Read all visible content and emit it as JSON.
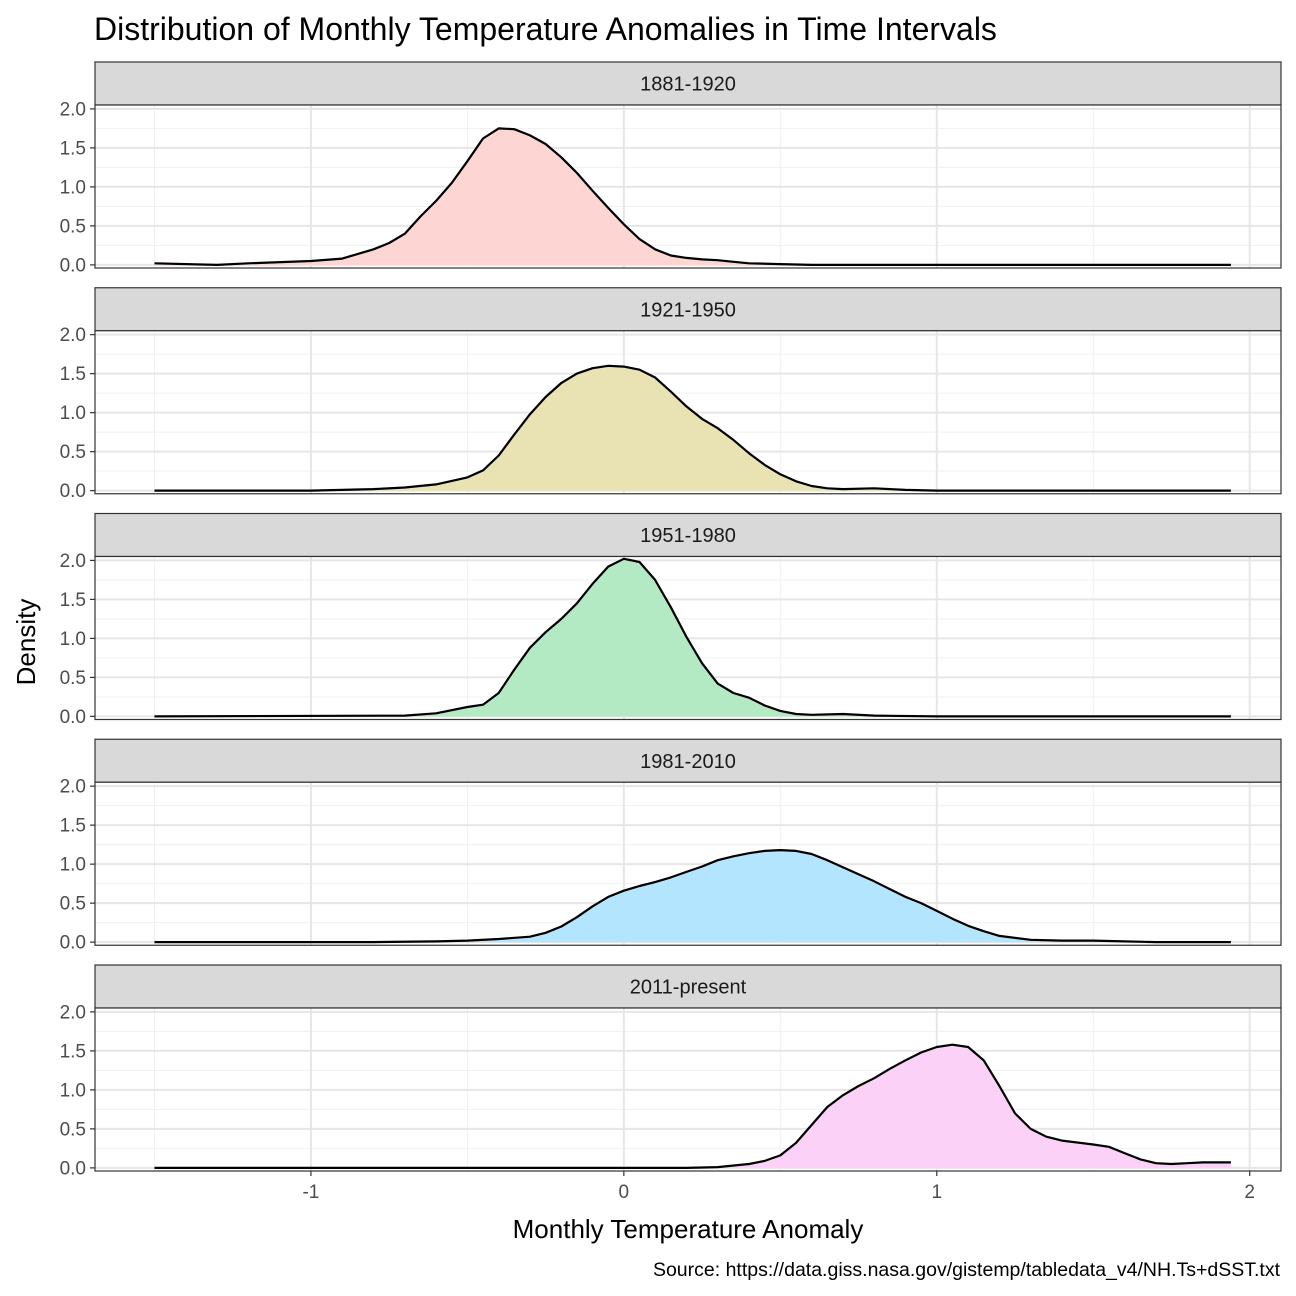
{
  "chart_data": {
    "type": "area",
    "title": "Distribution of Monthly Temperature Anomalies in Time Intervals",
    "xlabel": "Monthly Temperature Anomaly",
    "ylabel": "Density",
    "caption": "Source: https://data.giss.nasa.gov/gistemp/tabledata_v4/NH.Ts+dSST.txt",
    "xlim": [
      -1.69,
      2.1
    ],
    "ylim": [
      -0.04,
      2.05
    ],
    "x_ticks": [
      -1,
      0,
      1,
      2
    ],
    "x_tick_labels": [
      "-1",
      "0",
      "1",
      "2"
    ],
    "y_ticks": [
      0,
      0.5,
      1,
      1.5,
      2
    ],
    "y_tick_labels": [
      "0.0",
      "0.5",
      "1.0",
      "1.5",
      "2.0"
    ],
    "grid": true,
    "legend": "none",
    "facets": [
      {
        "name": "1881-1920",
        "color": "#F8766D",
        "x": [
          -1.5,
          -1.3,
          -1.2,
          -1.0,
          -0.9,
          -0.8,
          -0.75,
          -0.7,
          -0.65,
          -0.6,
          -0.55,
          -0.5,
          -0.45,
          -0.4,
          -0.35,
          -0.3,
          -0.25,
          -0.2,
          -0.15,
          -0.1,
          -0.05,
          0.0,
          0.05,
          0.1,
          0.15,
          0.2,
          0.25,
          0.3,
          0.35,
          0.4,
          0.5,
          0.6,
          0.8,
          1.0,
          1.5,
          1.94
        ],
        "y": [
          0.02,
          0.0,
          0.02,
          0.05,
          0.08,
          0.2,
          0.28,
          0.4,
          0.62,
          0.82,
          1.05,
          1.33,
          1.62,
          1.75,
          1.74,
          1.66,
          1.55,
          1.38,
          1.18,
          0.95,
          0.73,
          0.52,
          0.33,
          0.2,
          0.12,
          0.09,
          0.07,
          0.06,
          0.04,
          0.02,
          0.01,
          0.0,
          0.0,
          0.0,
          0.0,
          0.0
        ]
      },
      {
        "name": "1921-1950",
        "color": "#B79F00",
        "x": [
          -1.5,
          -1.0,
          -0.9,
          -0.8,
          -0.7,
          -0.6,
          -0.5,
          -0.45,
          -0.4,
          -0.35,
          -0.3,
          -0.25,
          -0.2,
          -0.15,
          -0.1,
          -0.05,
          0.0,
          0.05,
          0.1,
          0.15,
          0.2,
          0.25,
          0.3,
          0.35,
          0.4,
          0.45,
          0.5,
          0.55,
          0.6,
          0.65,
          0.7,
          0.8,
          0.9,
          1.0,
          1.5,
          1.94
        ],
        "y": [
          0.0,
          0.0,
          0.01,
          0.02,
          0.04,
          0.08,
          0.17,
          0.26,
          0.45,
          0.72,
          0.98,
          1.2,
          1.38,
          1.5,
          1.57,
          1.6,
          1.59,
          1.55,
          1.45,
          1.27,
          1.08,
          0.92,
          0.8,
          0.65,
          0.48,
          0.33,
          0.21,
          0.12,
          0.06,
          0.03,
          0.02,
          0.03,
          0.01,
          0.0,
          0.0,
          0.0
        ]
      },
      {
        "name": "1951-1980",
        "color": "#00BA38",
        "x": [
          -1.5,
          -0.7,
          -0.6,
          -0.5,
          -0.45,
          -0.4,
          -0.35,
          -0.3,
          -0.25,
          -0.2,
          -0.15,
          -0.1,
          -0.05,
          0.0,
          0.05,
          0.1,
          0.15,
          0.2,
          0.25,
          0.3,
          0.35,
          0.4,
          0.45,
          0.5,
          0.55,
          0.6,
          0.7,
          0.8,
          1.0,
          1.5,
          1.94
        ],
        "y": [
          0.0,
          0.01,
          0.04,
          0.12,
          0.15,
          0.3,
          0.6,
          0.88,
          1.08,
          1.25,
          1.45,
          1.7,
          1.92,
          2.02,
          1.98,
          1.75,
          1.4,
          1.02,
          0.68,
          0.42,
          0.3,
          0.24,
          0.14,
          0.07,
          0.03,
          0.02,
          0.03,
          0.01,
          0.0,
          0.0,
          0.0
        ]
      },
      {
        "name": "1981-2010",
        "color": "#00A9FF",
        "x": [
          -1.5,
          -0.8,
          -0.6,
          -0.5,
          -0.4,
          -0.3,
          -0.25,
          -0.2,
          -0.15,
          -0.1,
          -0.05,
          0.0,
          0.05,
          0.1,
          0.15,
          0.2,
          0.25,
          0.3,
          0.35,
          0.4,
          0.45,
          0.5,
          0.55,
          0.6,
          0.65,
          0.7,
          0.75,
          0.8,
          0.85,
          0.9,
          0.95,
          1.0,
          1.05,
          1.1,
          1.15,
          1.2,
          1.3,
          1.4,
          1.5,
          1.7,
          1.94
        ],
        "y": [
          0.0,
          0.0,
          0.01,
          0.02,
          0.04,
          0.07,
          0.12,
          0.2,
          0.32,
          0.46,
          0.58,
          0.66,
          0.72,
          0.77,
          0.83,
          0.9,
          0.97,
          1.05,
          1.1,
          1.14,
          1.17,
          1.18,
          1.17,
          1.13,
          1.05,
          0.96,
          0.87,
          0.78,
          0.68,
          0.58,
          0.5,
          0.4,
          0.3,
          0.21,
          0.14,
          0.08,
          0.03,
          0.02,
          0.02,
          0.0,
          0.0
        ]
      },
      {
        "name": "2011-present",
        "color": "#F564E3",
        "x": [
          -1.5,
          0.0,
          0.2,
          0.3,
          0.4,
          0.45,
          0.5,
          0.55,
          0.6,
          0.65,
          0.7,
          0.75,
          0.8,
          0.85,
          0.9,
          0.95,
          1.0,
          1.05,
          1.1,
          1.15,
          1.2,
          1.25,
          1.3,
          1.35,
          1.4,
          1.5,
          1.55,
          1.6,
          1.65,
          1.7,
          1.75,
          1.8,
          1.85,
          1.9,
          1.94
        ],
        "y": [
          0.0,
          0.0,
          0.0,
          0.01,
          0.05,
          0.09,
          0.16,
          0.32,
          0.55,
          0.78,
          0.93,
          1.05,
          1.15,
          1.27,
          1.38,
          1.48,
          1.55,
          1.58,
          1.55,
          1.38,
          1.05,
          0.7,
          0.5,
          0.4,
          0.35,
          0.3,
          0.27,
          0.19,
          0.11,
          0.06,
          0.05,
          0.06,
          0.07,
          0.07,
          0.07
        ]
      }
    ]
  }
}
